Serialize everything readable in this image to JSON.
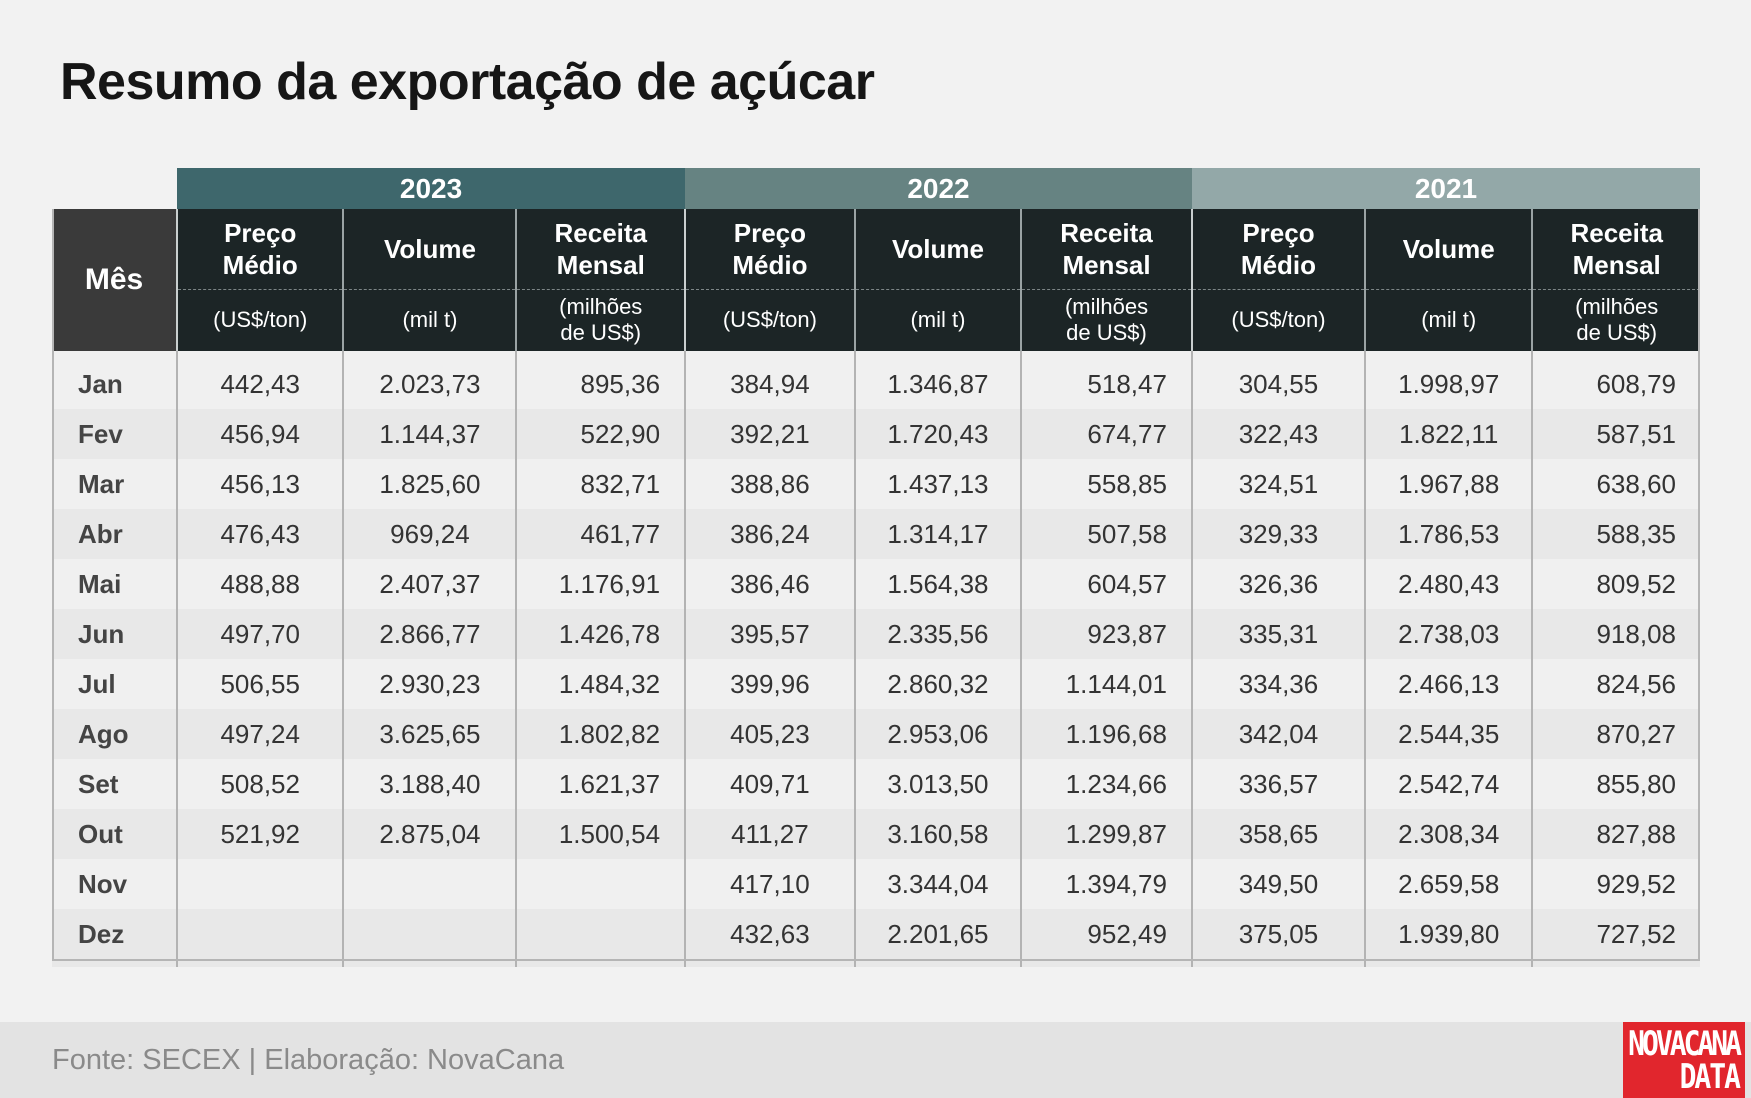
{
  "title": "Resumo da exportação de açúcar",
  "chart_data": {
    "type": "table",
    "title": "Resumo da exportação de açúcar",
    "row_header": "Mês",
    "years": [
      "2023",
      "2022",
      "2021"
    ],
    "columns": [
      {
        "name_line1": "Preço",
        "name_line2": "Médio",
        "unit_line1": "(US$/ton)",
        "unit_line2": ""
      },
      {
        "name_line1": "Volume",
        "name_line2": "",
        "unit_line1": "(mil t)",
        "unit_line2": ""
      },
      {
        "name_line1": "Receita",
        "name_line2": "Mensal",
        "unit_line1": "(milhões",
        "unit_line2": "de US$)"
      }
    ],
    "rows": [
      {
        "month": "Jan",
        "values": [
          "442,43",
          "2.023,73",
          "895,36",
          "384,94",
          "1.346,87",
          "518,47",
          "304,55",
          "1.998,97",
          "608,79"
        ]
      },
      {
        "month": "Fev",
        "values": [
          "456,94",
          "1.144,37",
          "522,90",
          "392,21",
          "1.720,43",
          "674,77",
          "322,43",
          "1.822,11",
          "587,51"
        ]
      },
      {
        "month": "Mar",
        "values": [
          "456,13",
          "1.825,60",
          "832,71",
          "388,86",
          "1.437,13",
          "558,85",
          "324,51",
          "1.967,88",
          "638,60"
        ]
      },
      {
        "month": "Abr",
        "values": [
          "476,43",
          "969,24",
          "461,77",
          "386,24",
          "1.314,17",
          "507,58",
          "329,33",
          "1.786,53",
          "588,35"
        ]
      },
      {
        "month": "Mai",
        "values": [
          "488,88",
          "2.407,37",
          "1.176,91",
          "386,46",
          "1.564,38",
          "604,57",
          "326,36",
          "2.480,43",
          "809,52"
        ]
      },
      {
        "month": "Jun",
        "values": [
          "497,70",
          "2.866,77",
          "1.426,78",
          "395,57",
          "2.335,56",
          "923,87",
          "335,31",
          "2.738,03",
          "918,08"
        ]
      },
      {
        "month": "Jul",
        "values": [
          "506,55",
          "2.930,23",
          "1.484,32",
          "399,96",
          "2.860,32",
          "1.144,01",
          "334,36",
          "2.466,13",
          "824,56"
        ]
      },
      {
        "month": "Ago",
        "values": [
          "497,24",
          "3.625,65",
          "1.802,82",
          "405,23",
          "2.953,06",
          "1.196,68",
          "342,04",
          "2.544,35",
          "870,27"
        ]
      },
      {
        "month": "Set",
        "values": [
          "508,52",
          "3.188,40",
          "1.621,37",
          "409,71",
          "3.013,50",
          "1.234,66",
          "336,57",
          "2.542,74",
          "855,80"
        ]
      },
      {
        "month": "Out",
        "values": [
          "521,92",
          "2.875,04",
          "1.500,54",
          "411,27",
          "3.160,58",
          "1.299,87",
          "358,65",
          "2.308,34",
          "827,88"
        ]
      },
      {
        "month": "Nov",
        "values": [
          "",
          "",
          "",
          "417,10",
          "3.344,04",
          "1.394,79",
          "349,50",
          "2.659,58",
          "929,52"
        ]
      },
      {
        "month": "Dez",
        "values": [
          "",
          "",
          "",
          "432,63",
          "2.201,65",
          "952,49",
          "375,05",
          "1.939,80",
          "727,52"
        ]
      }
    ]
  },
  "colors": {
    "year_2023": "#3e676c",
    "year_2022": "#668382",
    "year_2021": "#93a8a8",
    "header_bg": "#1c2526",
    "logo_bg": "#e1262d"
  },
  "footer": {
    "source": "Fonte: SECEX | Elaboração: NovaCana",
    "logo_line1": "NOVACANA",
    "logo_line2": "DATA"
  }
}
